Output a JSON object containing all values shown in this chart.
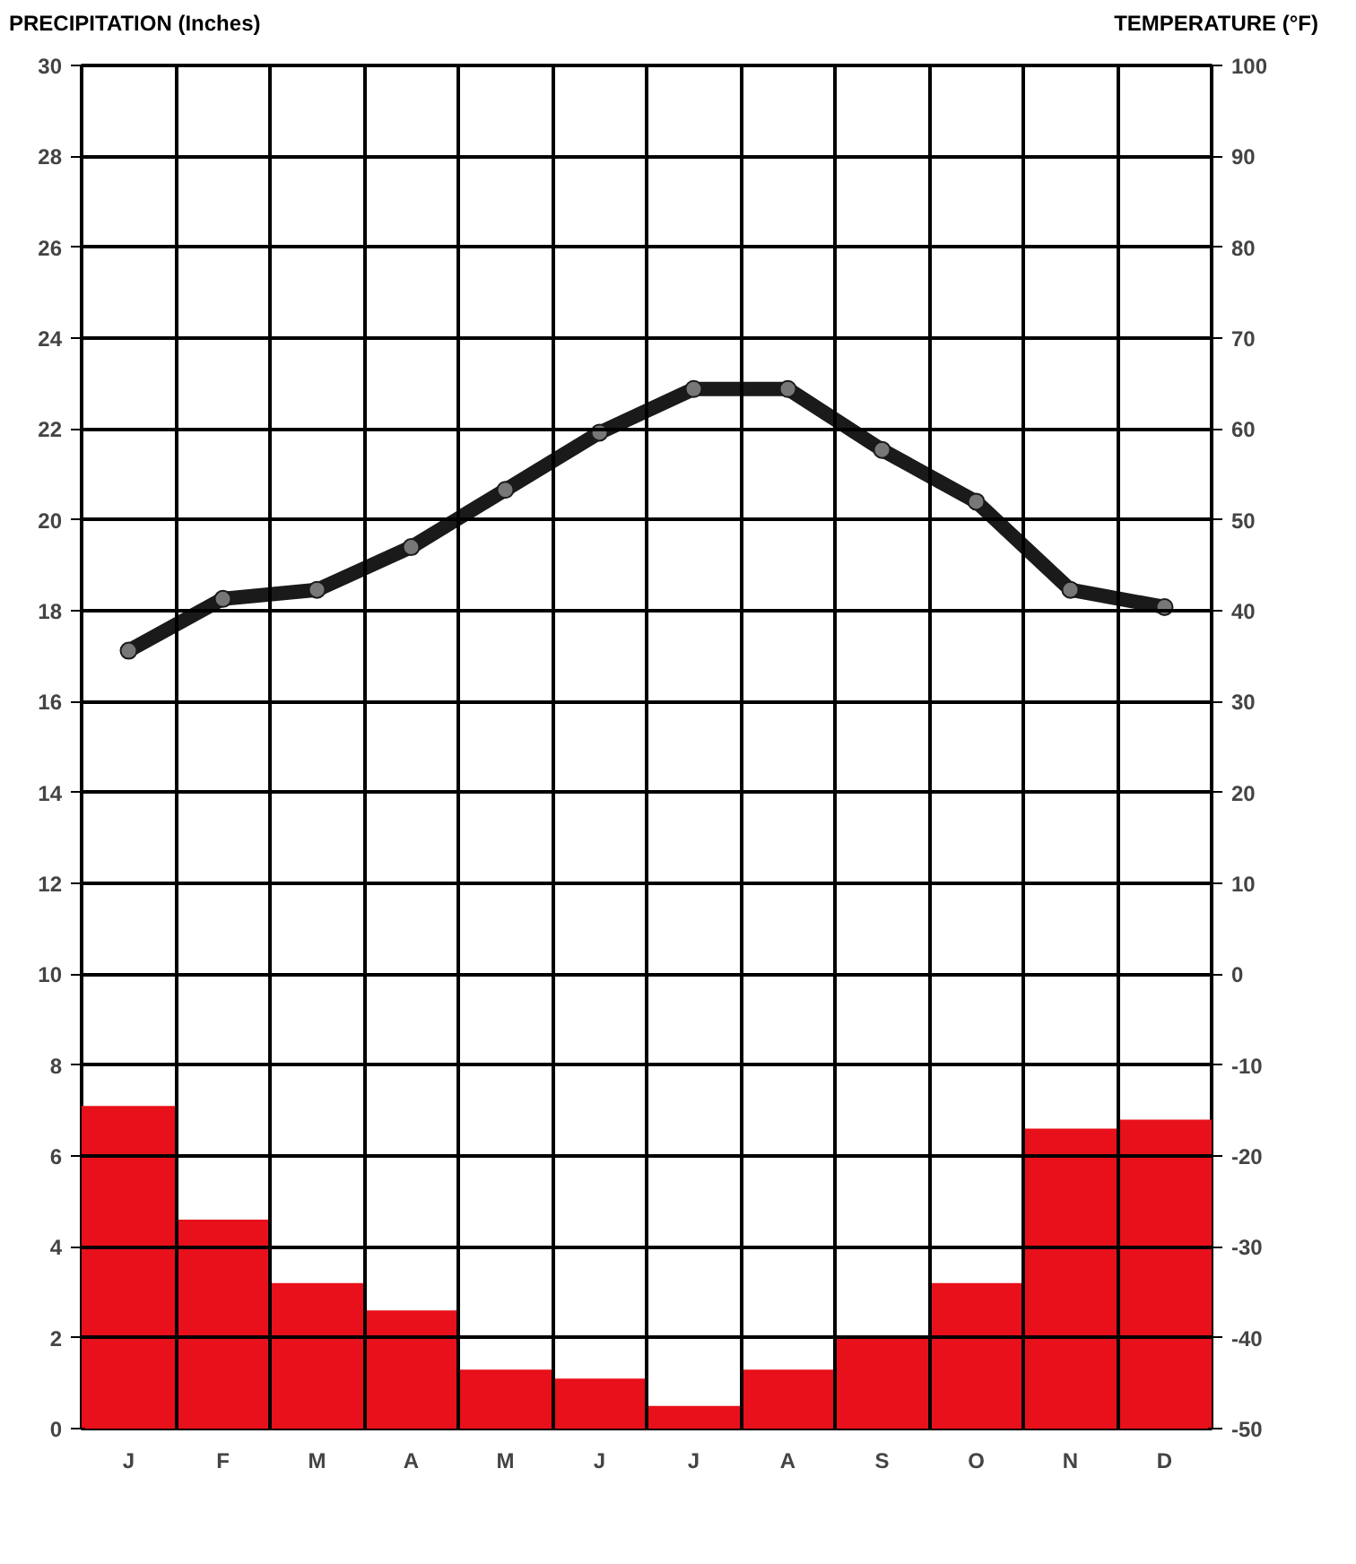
{
  "chart_data": {
    "type": "bar",
    "categories": [
      "J",
      "F",
      "M",
      "A",
      "M",
      "J",
      "J",
      "A",
      "S",
      "O",
      "N",
      "D"
    ],
    "ylabel": "PRECIPITATION (Inches)",
    "y2label": "TEMPERATURE (°F)",
    "ylim": [
      0,
      30
    ],
    "yticks": [
      0,
      2,
      4,
      6,
      8,
      10,
      12,
      14,
      16,
      18,
      20,
      22,
      24,
      26,
      28,
      30
    ],
    "y2lim": [
      -50,
      100
    ],
    "y2ticks": [
      -50,
      -40,
      -30,
      -20,
      -10,
      0,
      10,
      20,
      30,
      40,
      50,
      60,
      70,
      80,
      90,
      100
    ],
    "grid": true,
    "marker": "circle",
    "series": [
      {
        "color": "#e8101a",
        "values": [
          7.1,
          4.6,
          3.2,
          2.6,
          1.3,
          1.1,
          0.5,
          1.3,
          2.0,
          3.2,
          6.6,
          6.8
        ]
      },
      {
        "type": "line",
        "axis": "y2",
        "color": "#1a1a1a",
        "values": [
          35.6,
          41.3,
          42.3,
          47,
          53.3,
          59.6,
          64.4,
          64.4,
          57.7,
          52,
          42.3,
          40.4
        ]
      }
    ]
  }
}
